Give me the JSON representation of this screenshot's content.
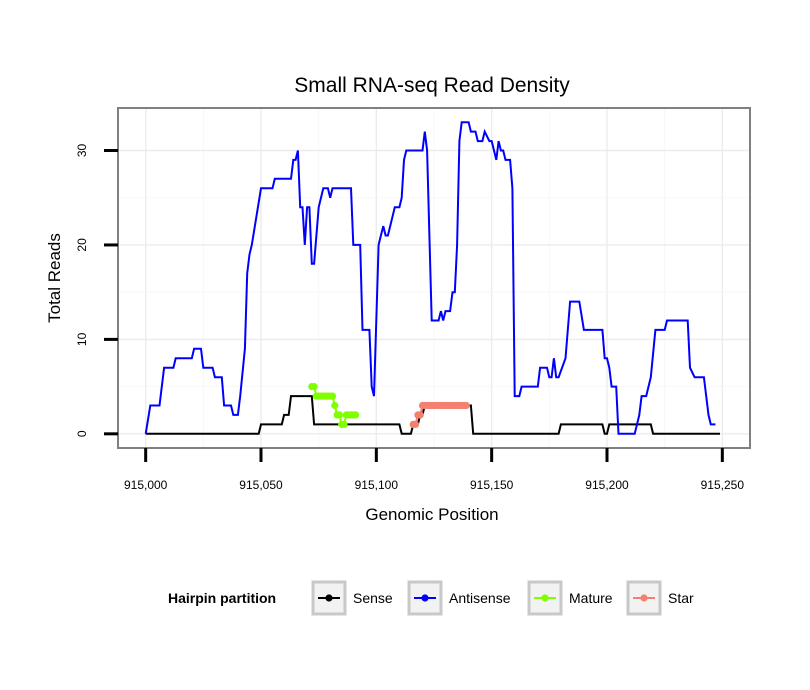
{
  "chart_data": {
    "type": "line",
    "title": "Small RNA-seq Read Density",
    "xlabel": "Genomic Position",
    "ylabel": "Total Reads",
    "xlim": [
      914988,
      915262
    ],
    "ylim": [
      -1.5,
      34.5
    ],
    "x_ticks": [
      915000,
      915050,
      915100,
      915150,
      915200,
      915250
    ],
    "x_tick_labels": [
      "915,000",
      "915,050",
      "915,100",
      "915,150",
      "915,200",
      "915,250"
    ],
    "y_ticks": [
      0,
      10,
      20,
      30
    ],
    "y_tick_labels": [
      "0",
      "10",
      "20",
      "30"
    ],
    "grid": true,
    "legend": {
      "title": "Hairpin partition",
      "position": "bottom",
      "entries": [
        "Sense",
        "Antisense",
        "Mature",
        "Star"
      ]
    },
    "series": [
      {
        "name": "Sense",
        "color": "#000000",
        "points": [
          [
            915000,
            0
          ],
          [
            915049,
            0
          ],
          [
            915050,
            1
          ],
          [
            915059,
            1
          ],
          [
            915060,
            2
          ],
          [
            915062,
            2
          ],
          [
            915063,
            4
          ],
          [
            915072,
            4
          ],
          [
            915073,
            1
          ],
          [
            915110,
            1
          ],
          [
            915111,
            0
          ],
          [
            915115,
            0
          ],
          [
            915116,
            1
          ],
          [
            915118,
            1
          ],
          [
            915119,
            2
          ],
          [
            915120,
            2
          ],
          [
            915121,
            3
          ],
          [
            915141,
            3
          ],
          [
            915142,
            0
          ],
          [
            915179,
            0
          ],
          [
            915180,
            1
          ],
          [
            915198,
            1
          ],
          [
            915199,
            0
          ],
          [
            915200,
            0
          ],
          [
            915201,
            1
          ],
          [
            915219,
            1
          ],
          [
            915220,
            0
          ],
          [
            915249,
            0
          ]
        ]
      },
      {
        "name": "Antisense",
        "color": "#0000ff",
        "points": [
          [
            915000,
            0
          ],
          [
            915002,
            3
          ],
          [
            915006,
            3
          ],
          [
            915008,
            7
          ],
          [
            915012,
            7
          ],
          [
            915013,
            8
          ],
          [
            915020,
            8
          ],
          [
            915021,
            9
          ],
          [
            915024,
            9
          ],
          [
            915025,
            7
          ],
          [
            915029,
            7
          ],
          [
            915030,
            6
          ],
          [
            915033,
            6
          ],
          [
            915034,
            3
          ],
          [
            915037,
            3
          ],
          [
            915038,
            2
          ],
          [
            915040,
            2
          ],
          [
            915041,
            4
          ],
          [
            915043,
            9
          ],
          [
            915044,
            17
          ],
          [
            915045,
            19
          ],
          [
            915046,
            20
          ],
          [
            915050,
            26
          ],
          [
            915055,
            26
          ],
          [
            915056,
            27
          ],
          [
            915063,
            27
          ],
          [
            915064,
            29
          ],
          [
            915065,
            29
          ],
          [
            915066,
            30
          ],
          [
            915067,
            24
          ],
          [
            915068,
            24
          ],
          [
            915069,
            20
          ],
          [
            915070,
            24
          ],
          [
            915071,
            24
          ],
          [
            915072,
            18
          ],
          [
            915073,
            18
          ],
          [
            915075,
            24
          ],
          [
            915077,
            26
          ],
          [
            915079,
            26
          ],
          [
            915080,
            25
          ],
          [
            915081,
            26
          ],
          [
            915089,
            26
          ],
          [
            915090,
            20
          ],
          [
            915093,
            20
          ],
          [
            915094,
            11
          ],
          [
            915097,
            11
          ],
          [
            915098,
            5
          ],
          [
            915099,
            4
          ],
          [
            915100,
            12
          ],
          [
            915101,
            20
          ],
          [
            915102,
            21
          ],
          [
            915103,
            22
          ],
          [
            915104,
            21
          ],
          [
            915105,
            21
          ],
          [
            915106,
            22
          ],
          [
            915108,
            24
          ],
          [
            915110,
            24
          ],
          [
            915111,
            25
          ],
          [
            915112,
            29
          ],
          [
            915113,
            30
          ],
          [
            915120,
            30
          ],
          [
            915121,
            32
          ],
          [
            915122,
            30
          ],
          [
            915124,
            12
          ],
          [
            915127,
            12
          ],
          [
            915128,
            13
          ],
          [
            915129,
            12
          ],
          [
            915130,
            13
          ],
          [
            915132,
            13
          ],
          [
            915133,
            15
          ],
          [
            915134,
            15
          ],
          [
            915135,
            20
          ],
          [
            915136,
            31
          ],
          [
            915137,
            33
          ],
          [
            915140,
            33
          ],
          [
            915141,
            32
          ],
          [
            915143,
            32
          ],
          [
            915144,
            31
          ],
          [
            915146,
            31
          ],
          [
            915147,
            32
          ],
          [
            915149,
            31
          ],
          [
            915150,
            31
          ],
          [
            915152,
            29
          ],
          [
            915153,
            31
          ],
          [
            915154,
            30
          ],
          [
            915155,
            30
          ],
          [
            915156,
            29
          ],
          [
            915158,
            29
          ],
          [
            915159,
            26
          ],
          [
            915160,
            4
          ],
          [
            915162,
            4
          ],
          [
            915163,
            5
          ],
          [
            915170,
            5
          ],
          [
            915171,
            7
          ],
          [
            915174,
            7
          ],
          [
            915175,
            6
          ],
          [
            915176,
            6
          ],
          [
            915177,
            8
          ],
          [
            915178,
            6
          ],
          [
            915179,
            6
          ],
          [
            915182,
            8
          ],
          [
            915184,
            14
          ],
          [
            915188,
            14
          ],
          [
            915190,
            11
          ],
          [
            915198,
            11
          ],
          [
            915199,
            8
          ],
          [
            915200,
            8
          ],
          [
            915201,
            7
          ],
          [
            915202,
            5
          ],
          [
            915204,
            5
          ],
          [
            915205,
            0
          ],
          [
            915212,
            0
          ],
          [
            915214,
            2
          ],
          [
            915215,
            4
          ],
          [
            915217,
            4
          ],
          [
            915219,
            6
          ],
          [
            915221,
            11
          ],
          [
            915225,
            11
          ],
          [
            915226,
            12
          ],
          [
            915235,
            12
          ],
          [
            915236,
            7
          ],
          [
            915238,
            6
          ],
          [
            915242,
            6
          ],
          [
            915244,
            2
          ],
          [
            915245,
            1
          ],
          [
            915247,
            1
          ]
        ]
      },
      {
        "name": "Mature",
        "color": "#80ff00",
        "points": [
          [
            915072,
            5
          ],
          [
            915073,
            5
          ],
          [
            915074,
            4
          ],
          [
            915075,
            4
          ],
          [
            915076,
            4
          ],
          [
            915077,
            4
          ],
          [
            915078,
            4
          ],
          [
            915079,
            4
          ],
          [
            915080,
            4
          ],
          [
            915081,
            4
          ],
          [
            915082,
            3
          ],
          [
            915083,
            2
          ],
          [
            915084,
            2
          ],
          [
            915085,
            1
          ],
          [
            915086,
            1
          ],
          [
            915087,
            2
          ],
          [
            915088,
            2
          ],
          [
            915089,
            2
          ],
          [
            915090,
            2
          ],
          [
            915091,
            2
          ]
        ]
      },
      {
        "name": "Star",
        "color": "#f4806f",
        "points": [
          [
            915116,
            1
          ],
          [
            915117,
            1
          ],
          [
            915118,
            2
          ],
          [
            915119,
            2
          ],
          [
            915120,
            3
          ],
          [
            915121,
            3
          ],
          [
            915122,
            3
          ],
          [
            915123,
            3
          ],
          [
            915124,
            3
          ],
          [
            915125,
            3
          ],
          [
            915126,
            3
          ],
          [
            915127,
            3
          ],
          [
            915128,
            3
          ],
          [
            915129,
            3
          ],
          [
            915130,
            3
          ],
          [
            915131,
            3
          ],
          [
            915132,
            3
          ],
          [
            915133,
            3
          ],
          [
            915134,
            3
          ],
          [
            915135,
            3
          ],
          [
            915136,
            3
          ],
          [
            915137,
            3
          ],
          [
            915138,
            3
          ],
          [
            915139,
            3
          ]
        ]
      }
    ]
  }
}
